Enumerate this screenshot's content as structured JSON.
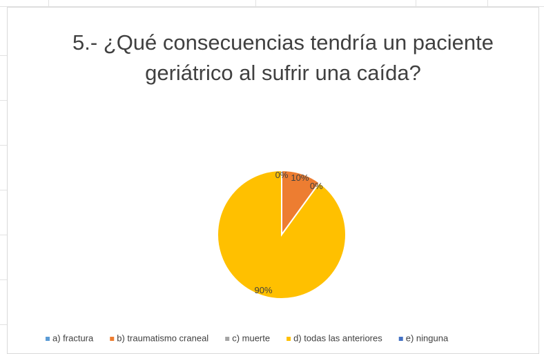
{
  "chart_data": {
    "type": "pie",
    "title": "5.- ¿Qué consecuencias tendría un paciente geriátrico al sufrir una caída?",
    "categories": [
      "a) fractura",
      "b)  traumatismo craneal",
      "c)  muerte",
      "d) todas las anteriores",
      "e)  ninguna"
    ],
    "values": [
      0,
      10,
      0,
      90,
      0
    ],
    "value_labels": [
      "0%",
      "10%",
      "0%",
      "90%",
      null
    ],
    "colors": [
      "#5b9bd5",
      "#ed7d31",
      "#a5a5a5",
      "#ffc000",
      "#4472c4"
    ],
    "legend": "bottom"
  }
}
